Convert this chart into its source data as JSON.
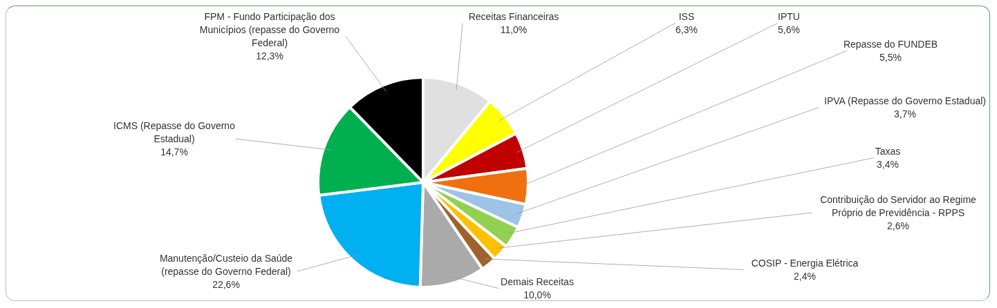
{
  "chart_data": {
    "type": "pie",
    "categories": [
      "Receitas Financeiras",
      "ISS",
      "IPTU",
      "Repasse do FUNDEB",
      "IPVA (Repasse do Governo Estadual)",
      "Taxas",
      "Contribuição do Servidor ao Regime Próprio de Previdência - RPPS",
      "COSIP - Energia Elétrica",
      "Demais Receitas",
      "Manutenção/Custeio da Saúde (repasse do Governo Federal)",
      "ICMS (Repasse do Governo Estadual)",
      "FPM - Fundo Participação dos Municípios (repasse do Governo Federal)"
    ],
    "values": [
      11.0,
      6.3,
      5.6,
      5.5,
      3.7,
      3.4,
      2.6,
      2.4,
      10.0,
      22.6,
      14.7,
      12.3
    ],
    "value_labels": [
      "11,0%",
      "6,3%",
      "5,6%",
      "5,5%",
      "3,7%",
      "3,4%",
      "2,6%",
      "2,4%",
      "10,0%",
      "22,6%",
      "14,7%",
      "12,3%"
    ],
    "colors": [
      "#e0e0e0",
      "#ffff00",
      "#c00000",
      "#f07010",
      "#9dc3e6",
      "#92d050",
      "#ffc000",
      "#a0622d",
      "#aaaaaa",
      "#00b0f0",
      "#00b050",
      "#000000"
    ]
  }
}
